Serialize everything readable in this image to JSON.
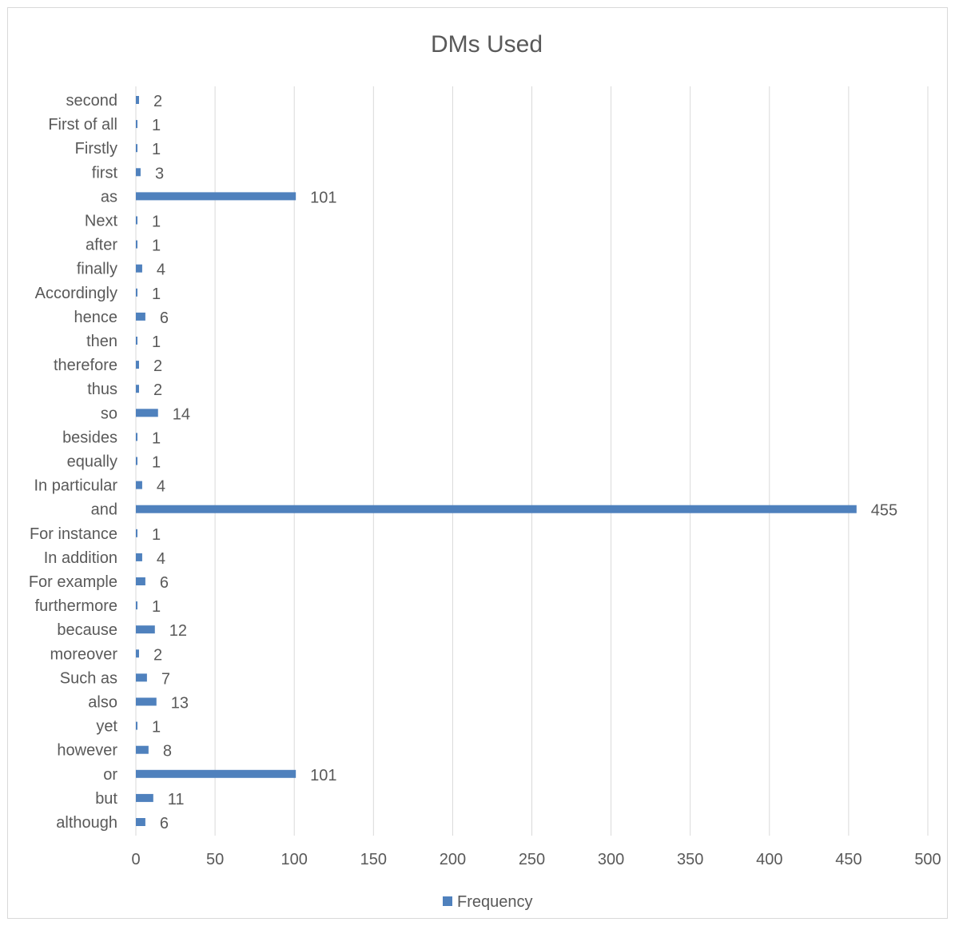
{
  "chart_data": {
    "type": "bar",
    "orientation": "horizontal",
    "title": "DMs Used",
    "xlabel": "",
    "ylabel": "",
    "xlim": [
      0,
      500
    ],
    "xticks": [
      0,
      50,
      100,
      150,
      200,
      250,
      300,
      350,
      400,
      450,
      500
    ],
    "grid": true,
    "legend_position": "bottom",
    "bar_color": "#4f81bd",
    "categories": [
      "second",
      "First of all",
      "Firstly",
      "first",
      "as",
      "Next",
      "after",
      "finally",
      "Accordingly",
      "hence",
      "then",
      "therefore",
      "thus",
      "so",
      "besides",
      "equally",
      "In particular",
      "and",
      "For instance",
      "In addition",
      "For example",
      "furthermore",
      "because",
      "moreover",
      "Such as",
      "also",
      "yet",
      "however",
      "or",
      "but",
      "although"
    ],
    "series": [
      {
        "name": "Frequency",
        "values": [
          2,
          1,
          1,
          3,
          101,
          1,
          1,
          4,
          1,
          6,
          1,
          2,
          2,
          14,
          1,
          1,
          4,
          455,
          1,
          4,
          6,
          1,
          12,
          2,
          7,
          13,
          1,
          8,
          101,
          11,
          6
        ]
      }
    ]
  }
}
